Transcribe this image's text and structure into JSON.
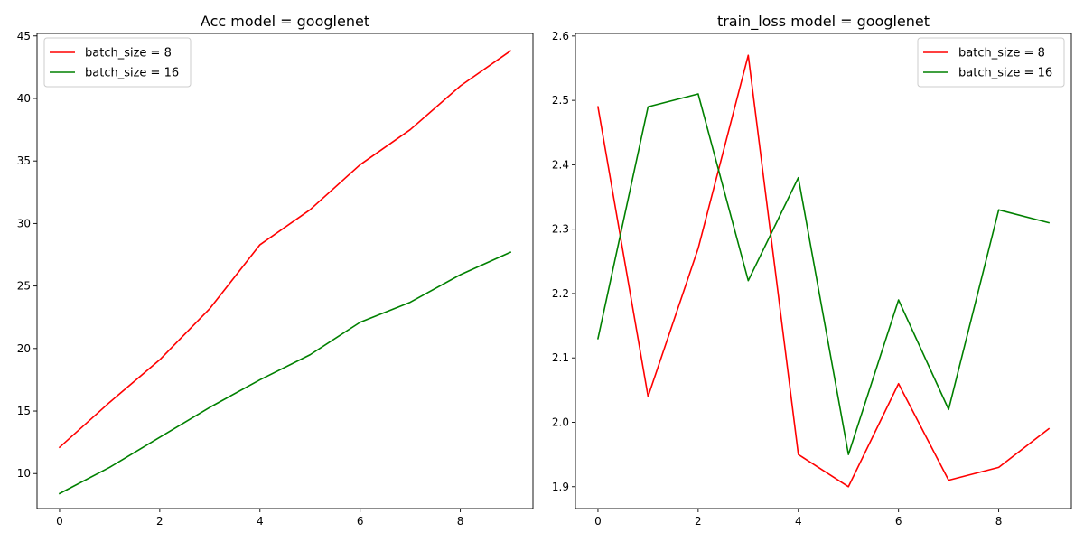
{
  "chart_data": [
    {
      "type": "line",
      "title": "Acc model = googlenet",
      "xlabel": "",
      "ylabel": "",
      "x": [
        0,
        1,
        2,
        3,
        4,
        5,
        6,
        7,
        8,
        9
      ],
      "xlim": [
        -0.45,
        9.45
      ],
      "ylim": [
        7.2,
        45.2
      ],
      "xticks": [
        0,
        2,
        4,
        6,
        8
      ],
      "yticks": [
        10,
        15,
        20,
        25,
        30,
        35,
        40,
        45
      ],
      "xtick_labels": [
        "0",
        "2",
        "4",
        "6",
        "8"
      ],
      "ytick_labels": [
        "10",
        "15",
        "20",
        "25",
        "30",
        "35",
        "40",
        "45"
      ],
      "grid": false,
      "legend_position": "top-left",
      "series": [
        {
          "name": "batch_size = 8",
          "color": "#ff0000",
          "values": [
            12.1,
            15.7,
            19.1,
            23.2,
            28.3,
            31.1,
            34.7,
            37.5,
            41.0,
            43.8
          ]
        },
        {
          "name": "batch_size = 16",
          "color": "#008000",
          "values": [
            8.4,
            10.5,
            12.9,
            15.3,
            17.5,
            19.5,
            22.1,
            23.7,
            25.9,
            27.7
          ]
        }
      ]
    },
    {
      "type": "line",
      "title": "train_loss model = googlenet",
      "xlabel": "",
      "ylabel": "",
      "x": [
        0,
        1,
        2,
        3,
        4,
        5,
        6,
        7,
        8,
        9
      ],
      "xlim": [
        -0.45,
        9.45
      ],
      "ylim": [
        1.866,
        2.604
      ],
      "xticks": [
        0,
        2,
        4,
        6,
        8
      ],
      "yticks": [
        1.9,
        2.0,
        2.1,
        2.2,
        2.3,
        2.4,
        2.5,
        2.6
      ],
      "xtick_labels": [
        "0",
        "2",
        "4",
        "6",
        "8"
      ],
      "ytick_labels": [
        "1.9",
        "2.0",
        "2.1",
        "2.2",
        "2.3",
        "2.4",
        "2.5",
        "2.6"
      ],
      "grid": false,
      "legend_position": "top-right",
      "series": [
        {
          "name": "batch_size = 8",
          "color": "#ff0000",
          "values": [
            2.49,
            2.04,
            2.27,
            2.57,
            1.95,
            1.9,
            2.06,
            1.91,
            1.93,
            1.99
          ]
        },
        {
          "name": "batch_size = 16",
          "color": "#008000",
          "values": [
            2.13,
            2.49,
            2.51,
            2.22,
            2.38,
            1.95,
            2.19,
            2.02,
            2.33,
            2.31
          ]
        }
      ]
    }
  ]
}
